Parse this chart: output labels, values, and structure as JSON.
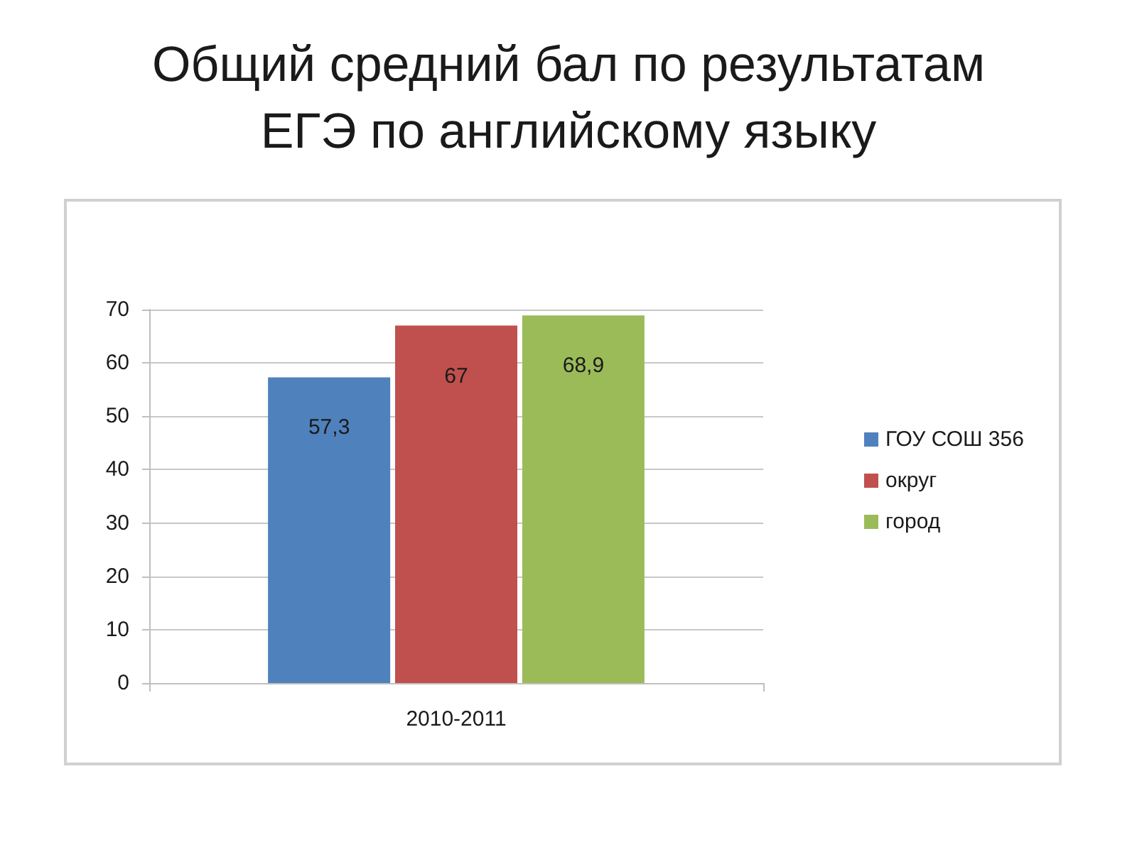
{
  "chart_data": {
    "type": "bar",
    "title": "Общий средний бал по результатам ЕГЭ по английскому языку",
    "categories": [
      "2010-2011"
    ],
    "series": [
      {
        "name": "ГОУ СОШ 356",
        "color": "#4f81bd",
        "values": [
          57.3
        ],
        "value_labels": [
          "57,3"
        ]
      },
      {
        "name": "округ",
        "color": "#c0504d",
        "values": [
          67
        ],
        "value_labels": [
          "67"
        ]
      },
      {
        "name": "город",
        "color": "#9bbb59",
        "values": [
          68.9
        ],
        "value_labels": [
          "68,9"
        ]
      }
    ],
    "ylim": [
      0,
      70
    ],
    "yticks": [
      0,
      10,
      20,
      30,
      40,
      50,
      60,
      70
    ],
    "grid": "y",
    "legend": "right"
  }
}
